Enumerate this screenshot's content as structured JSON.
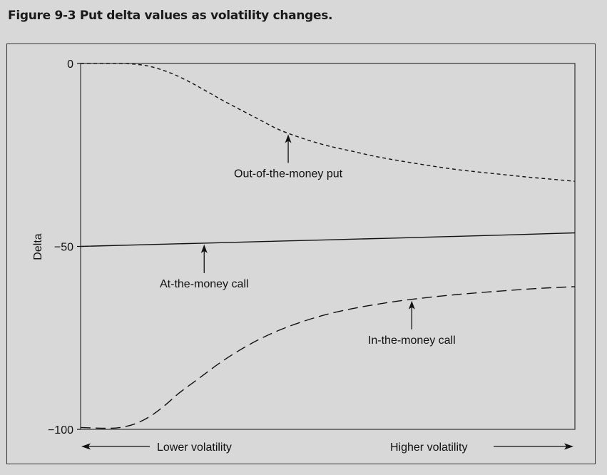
{
  "figure": {
    "title": "Figure 9-3  Put delta values as volatility changes."
  },
  "colors": {
    "background": "#d8d8d8",
    "ink": "#111111"
  },
  "chart_data": {
    "type": "line",
    "title": "Figure 9-3  Put delta values as volatility changes.",
    "ylabel": "Delta",
    "xlabel": "",
    "ylim": [
      -100,
      0
    ],
    "y_ticks": [
      {
        "value": 0,
        "label": "0"
      },
      {
        "value": -50,
        "label": "−50"
      },
      {
        "value": -100,
        "label": "−100"
      }
    ],
    "xlim": [
      0,
      1
    ],
    "x_axis_annotations": {
      "left": "Lower volatility",
      "right": "Higher volatility"
    },
    "grid": false,
    "series": [
      {
        "name": "Out-of-the-money put",
        "style": "short-dash",
        "x": [
          0,
          0.05,
          0.1,
          0.14,
          0.18,
          0.22,
          0.26,
          0.3,
          0.35,
          0.4,
          0.45,
          0.5,
          0.55,
          0.6,
          0.65,
          0.7,
          0.75,
          0.8,
          0.85,
          0.9,
          0.95,
          1.0
        ],
        "values": [
          0,
          0,
          -0.1,
          -0.8,
          -2.5,
          -5,
          -8,
          -11,
          -14.5,
          -18,
          -20.5,
          -22.5,
          -24,
          -25.5,
          -26.7,
          -27.8,
          -28.8,
          -29.6,
          -30.3,
          -31,
          -31.6,
          -32.2
        ]
      },
      {
        "name": "At-the-money call",
        "style": "solid",
        "x": [
          0,
          0.25,
          0.5,
          0.75,
          1.0
        ],
        "values": [
          -50,
          -49.1,
          -48.2,
          -47.3,
          -46.3
        ]
      },
      {
        "name": "In-the-money call",
        "style": "long-dash",
        "x": [
          0,
          0.05,
          0.08,
          0.11,
          0.14,
          0.17,
          0.2,
          0.24,
          0.28,
          0.32,
          0.36,
          0.4,
          0.45,
          0.5,
          0.55,
          0.6,
          0.65,
          0.7,
          0.75,
          0.8,
          0.85,
          0.9,
          0.95,
          1.0
        ],
        "values": [
          -99.5,
          -99.7,
          -99.5,
          -98.5,
          -96.5,
          -93.5,
          -90,
          -86,
          -82,
          -78.5,
          -75.5,
          -73,
          -70.5,
          -68.5,
          -67,
          -65.8,
          -64.8,
          -64,
          -63.3,
          -62.7,
          -62.2,
          -61.7,
          -61.3,
          -61
        ]
      }
    ],
    "annotations": [
      {
        "text": "Out-of-the-money put",
        "series": 0,
        "at_x": 0.42
      },
      {
        "text": "At-the-money call",
        "series": 1,
        "at_x": 0.25
      },
      {
        "text": "In-the-money call",
        "series": 2,
        "at_x": 0.67
      }
    ]
  }
}
